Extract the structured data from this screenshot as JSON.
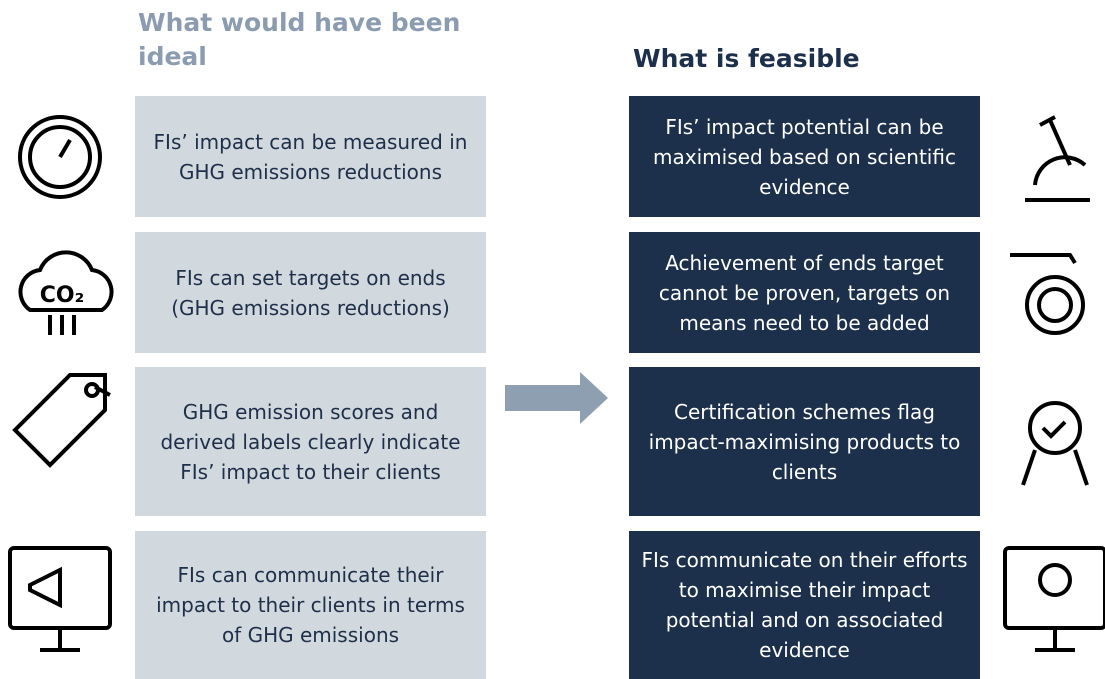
{
  "left": {
    "heading": "What would have been ideal",
    "items": [
      "FIs’ impact can be measured in GHG emissions reductions",
      "FIs can set targets on ends (GHG emissions reductions)",
      "GHG emission scores and derived labels clearly indicate FIs’ impact to their clients",
      "FIs can communicate their impact to their clients in terms of GHG emissions"
    ]
  },
  "right": {
    "heading": "What is feasible",
    "items": [
      "FIs’ impact potential can be maximised based on scientific evidence",
      "Achievement of ends target cannot be proven, targets on means need to be added",
      "Certification schemes flag impact-maximising products to clients",
      "FIs communicate on their efforts to maximise their impact potential and on associated evidence"
    ]
  },
  "icons": {
    "co2": "CO₂"
  }
}
